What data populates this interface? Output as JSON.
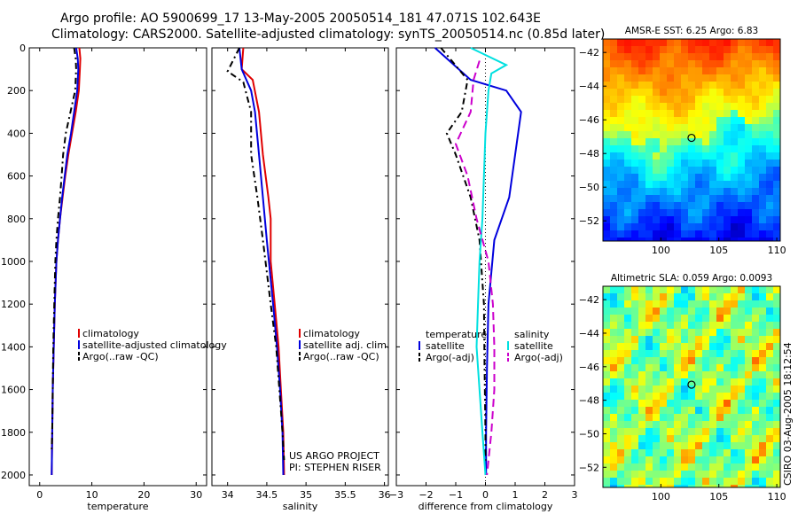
{
  "title": {
    "line1": "Argo profile: AO 5900699_17 13-May-2005 20050514_181 47.071S 102.643E",
    "line2": "Climatology: CARS2000. Satellite-adjusted climatology: synTS_20050514.nc (0.85d later)"
  },
  "side_stamp": "CSIRO 03-Aug-2005 18:12:54",
  "chart_data": [
    {
      "id": "temperature",
      "type": "line",
      "xlabel": "temperature",
      "ylabel": "",
      "xlim": [
        -2,
        32
      ],
      "ylim": [
        0,
        2050
      ],
      "y_inverted": true,
      "xticks": [
        0,
        10,
        20,
        30
      ],
      "yticks": [
        0,
        200,
        400,
        600,
        800,
        1000,
        1200,
        1400,
        1600,
        1800,
        2000
      ],
      "legend": [
        "climatology",
        "satellite-adjusted climatology",
        "Argo(..raw -QC)"
      ],
      "legend_colors": [
        "#e00000",
        "#0000dd",
        "#000000"
      ],
      "series": [
        {
          "name": "climatology",
          "color": "#e00000",
          "dash": "",
          "points": [
            [
              7.6,
              0
            ],
            [
              7.8,
              50
            ],
            [
              7.7,
              100
            ],
            [
              7.5,
              200
            ],
            [
              6.9,
              300
            ],
            [
              6.2,
              400
            ],
            [
              5.5,
              500
            ],
            [
              4.9,
              600
            ],
            [
              4.4,
              700
            ],
            [
              3.9,
              800
            ],
            [
              3.5,
              900
            ],
            [
              3.2,
              1000
            ],
            [
              2.9,
              1200
            ],
            [
              2.7,
              1400
            ],
            [
              2.5,
              1600
            ],
            [
              2.4,
              1800
            ],
            [
              2.3,
              2000
            ]
          ]
        },
        {
          "name": "satellite-adjusted climatology",
          "color": "#0000dd",
          "dash": "",
          "points": [
            [
              7.0,
              0
            ],
            [
              7.3,
              50
            ],
            [
              7.4,
              100
            ],
            [
              7.2,
              200
            ],
            [
              6.6,
              300
            ],
            [
              6.0,
              400
            ],
            [
              5.3,
              500
            ],
            [
              4.8,
              600
            ],
            [
              4.3,
              700
            ],
            [
              3.9,
              800
            ],
            [
              3.5,
              900
            ],
            [
              3.2,
              1000
            ],
            [
              2.9,
              1200
            ],
            [
              2.7,
              1400
            ],
            [
              2.5,
              1600
            ],
            [
              2.4,
              1800
            ],
            [
              2.3,
              2000
            ]
          ]
        },
        {
          "name": "Argo(..raw -QC)",
          "color": "#000000",
          "dash": "7,4,2,4",
          "points": [
            [
              6.6,
              0
            ],
            [
              6.9,
              50
            ],
            [
              7.0,
              100
            ],
            [
              6.8,
              200
            ],
            [
              5.9,
              300
            ],
            [
              5.0,
              400
            ],
            [
              4.5,
              500
            ],
            [
              4.2,
              600
            ],
            [
              3.9,
              700
            ],
            [
              3.5,
              800
            ],
            [
              3.2,
              900
            ],
            [
              3.0,
              1000
            ],
            [
              2.8,
              1200
            ],
            [
              2.6,
              1400
            ],
            [
              2.5,
              1600
            ],
            [
              2.4,
              1800
            ],
            [
              2.3,
              1880
            ]
          ]
        }
      ]
    },
    {
      "id": "salinity",
      "type": "line",
      "xlabel": "salinity",
      "ylabel": "",
      "xlim": [
        33.8,
        36.05
      ],
      "ylim": [
        0,
        2050
      ],
      "y_inverted": true,
      "xticks": [
        34,
        34.5,
        35,
        35.5,
        36
      ],
      "yticks": [
        0,
        200,
        400,
        600,
        800,
        1000,
        1200,
        1400,
        1600,
        1800,
        2000
      ],
      "legend": [
        "climatology",
        "satellite adj. clim.",
        "Argo(..raw -QC)"
      ],
      "legend_colors": [
        "#e00000",
        "#0000dd",
        "#000000"
      ],
      "annotations": [
        "US ARGO PROJECT",
        "PI: STEPHEN RISER"
      ],
      "series": [
        {
          "name": "climatology",
          "color": "#e00000",
          "dash": "",
          "points": [
            [
              34.2,
              0
            ],
            [
              34.18,
              100
            ],
            [
              34.32,
              150
            ],
            [
              34.4,
              300
            ],
            [
              34.45,
              500
            ],
            [
              34.52,
              700
            ],
            [
              34.55,
              800
            ],
            [
              34.55,
              1000
            ],
            [
              34.6,
              1200
            ],
            [
              34.65,
              1400
            ],
            [
              34.68,
              1600
            ],
            [
              34.71,
              1800
            ],
            [
              34.72,
              2000
            ]
          ]
        },
        {
          "name": "satellite adj. clim.",
          "color": "#0000dd",
          "dash": "",
          "points": [
            [
              34.15,
              0
            ],
            [
              34.18,
              100
            ],
            [
              34.3,
              200
            ],
            [
              34.35,
              300
            ],
            [
              34.4,
              500
            ],
            [
              34.45,
              700
            ],
            [
              34.5,
              900
            ],
            [
              34.58,
              1200
            ],
            [
              34.63,
              1400
            ],
            [
              34.67,
              1600
            ],
            [
              34.7,
              1800
            ],
            [
              34.71,
              2000
            ]
          ]
        },
        {
          "name": "Argo(..raw -QC)",
          "color": "#000000",
          "dash": "7,4,2,4",
          "points": [
            [
              34.15,
              0
            ],
            [
              34.0,
              110
            ],
            [
              34.2,
              160
            ],
            [
              34.3,
              300
            ],
            [
              34.3,
              500
            ],
            [
              34.38,
              700
            ],
            [
              34.45,
              900
            ],
            [
              34.55,
              1200
            ],
            [
              34.62,
              1400
            ],
            [
              34.66,
              1600
            ],
            [
              34.7,
              1800
            ],
            [
              34.72,
              1930
            ]
          ]
        }
      ]
    },
    {
      "id": "difference",
      "type": "line",
      "xlabel": "difference from climatology",
      "ylabel": "",
      "xlim": [
        -3,
        3
      ],
      "ylim": [
        0,
        2050
      ],
      "y_inverted": true,
      "xticks": [
        -3,
        -2,
        -1,
        0,
        1,
        2,
        3
      ],
      "yticks": [
        0,
        200,
        400,
        600,
        800,
        1000,
        1200,
        1400,
        1600,
        1800,
        2000
      ],
      "legend_temperature": [
        "temperature",
        "satellite",
        "Argo(-adj)"
      ],
      "legend_salinity": [
        "salinity",
        "satellite",
        "Argo(-adj)"
      ],
      "series": [
        {
          "name": "temperature satellite",
          "color": "#0000dd",
          "dash": "",
          "points": [
            [
              -1.7,
              0
            ],
            [
              -1.3,
              50
            ],
            [
              -0.5,
              150
            ],
            [
              0.7,
              200
            ],
            [
              1.2,
              300
            ],
            [
              1.0,
              500
            ],
            [
              0.8,
              700
            ],
            [
              0.3,
              900
            ],
            [
              0.1,
              1200
            ],
            [
              0.05,
              1500
            ],
            [
              0.02,
              1800
            ],
            [
              0.02,
              2000
            ]
          ]
        },
        {
          "name": "temperature Argo(-adj)",
          "color": "#000000",
          "dash": "7,4,2,4",
          "points": [
            [
              -1.5,
              0
            ],
            [
              -1.2,
              50
            ],
            [
              -0.6,
              150
            ],
            [
              -0.8,
              300
            ],
            [
              -1.3,
              400
            ],
            [
              -1.0,
              500
            ],
            [
              -0.5,
              700
            ],
            [
              -0.2,
              900
            ],
            [
              -0.05,
              1200
            ],
            [
              -0.03,
              1500
            ],
            [
              0,
              1800
            ],
            [
              0,
              1950
            ]
          ]
        },
        {
          "name": "salinity satellite",
          "color": "#00e0e0",
          "dash": "",
          "points": [
            [
              -0.5,
              0
            ],
            [
              0.7,
              80
            ],
            [
              0.2,
              120
            ],
            [
              0.1,
              200
            ],
            [
              0,
              400
            ],
            [
              -0.1,
              800
            ],
            [
              -0.2,
              1000
            ],
            [
              -0.25,
              1200
            ],
            [
              -0.3,
              1400
            ],
            [
              -0.2,
              1600
            ],
            [
              -0.1,
              1800
            ],
            [
              0,
              2000
            ]
          ]
        },
        {
          "name": "salinity Argo(-adj)",
          "color": "#cc00cc",
          "dash": "9,5",
          "points": [
            [
              -0.2,
              60
            ],
            [
              -0.4,
              150
            ],
            [
              -0.5,
              300
            ],
            [
              -1.0,
              450
            ],
            [
              -0.6,
              600
            ],
            [
              -0.3,
              800
            ],
            [
              0.1,
              1000
            ],
            [
              0.25,
              1200
            ],
            [
              0.3,
              1400
            ],
            [
              0.3,
              1600
            ],
            [
              0.2,
              1800
            ],
            [
              0.05,
              2000
            ]
          ]
        }
      ]
    },
    {
      "id": "sst-map",
      "type": "heatmap",
      "title": "AMSR-E SST: 6.25 Argo: 6.83",
      "xlim": [
        95,
        110.3
      ],
      "ylim": [
        -53.2,
        -41.2
      ],
      "xticks": [
        100,
        105,
        110
      ],
      "yticks": [
        -42,
        -44,
        -46,
        -48,
        -50,
        -52
      ],
      "marker": [
        102.643,
        -47.071
      ]
    },
    {
      "id": "sla-map",
      "type": "heatmap",
      "title": "Altimetric SLA: 0.059 Argo: 0.0093",
      "xlim": [
        95,
        110.3
      ],
      "ylim": [
        -53.2,
        -41.2
      ],
      "xticks": [
        100,
        105,
        110
      ],
      "yticks": [
        -42,
        -44,
        -46,
        -48,
        -50,
        -52
      ],
      "marker": [
        102.643,
        -47.071
      ]
    }
  ]
}
